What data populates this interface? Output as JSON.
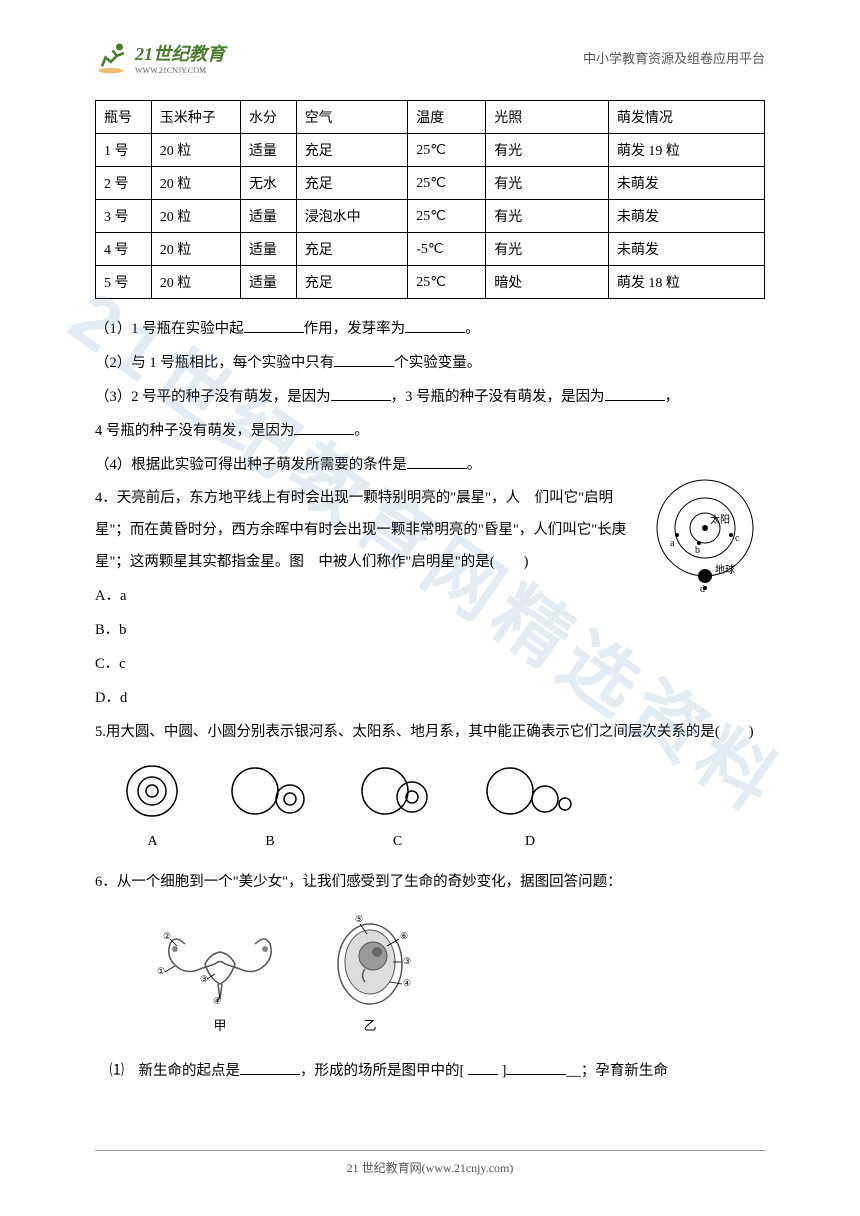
{
  "header": {
    "logo_main": "21世纪教育",
    "logo_url": "WWW.21CNJY.COM",
    "platform_text": "中小学教育资源及组卷应用平台"
  },
  "watermark": "21世纪教育网精选资料",
  "table": {
    "columns": [
      "瓶号",
      "玉米种子",
      "水分",
      "空气",
      "温度",
      "光照",
      "萌发情况"
    ],
    "col_widths": [
      "50px",
      "80px",
      "50px",
      "100px",
      "70px",
      "110px",
      "140px"
    ],
    "rows": [
      [
        "1 号",
        "20 粒",
        "适量",
        "充足",
        "25℃",
        "有光",
        "萌发 19 粒"
      ],
      [
        "2 号",
        "20 粒",
        "无水",
        "充足",
        "25℃",
        "有光",
        "未萌发"
      ],
      [
        "3 号",
        "20 粒",
        "适量",
        "浸泡水中",
        "25℃",
        "有光",
        "未萌发"
      ],
      [
        "4 号",
        "20 粒",
        "适量",
        "充足",
        "-5℃",
        "有光",
        "未萌发"
      ],
      [
        "5 号",
        "20 粒",
        "适量",
        "充足",
        "25℃",
        "暗处",
        "萌发 18 粒"
      ]
    ],
    "border_color": "#000000",
    "font_size": 14
  },
  "questions": {
    "q3_1": "（1）1 号瓶在实验中起________作用，发芽率为________。",
    "q3_2": "（2）与 1 号瓶相比，每个实验中只有________个实验变量。",
    "q3_3a": "（3）2 号平的种子没有萌发，是因为________，3 号瓶的种子没有萌发，是因为________，",
    "q3_3b": "4 号瓶的种子没有萌发，是因为________。",
    "q3_4": "（4）根据此实验可得出种子萌发所需要的条件是________。",
    "q4_text": "4．天亮前后，东方地平线上有时会出现一颗特别明亮的\"晨星\"，人　们叫它\"启明星\"；而在黄昏时分，西方余晖中有时会出现一颗非常明亮的\"昏星\"，人们叫它\"长庚星\"；这两颗星其实都指金星。图　中被人们称作\"启明星\"的是(　　)",
    "q4_options": [
      "A．a",
      "B．b",
      "C．c",
      "D．d"
    ],
    "q5_text": "5.用大圆、中圆、小圆分别表示银河系、太阳系、地月系，其中能正确表示它们之间层次关系的是(　　)",
    "q5_labels": [
      "A",
      "B",
      "C",
      "D"
    ],
    "q6_text": "6．从一个细胞到一个\"美少女\"，让我们感受到了生命的奇妙变化，据图回答问题：",
    "q6_labels": [
      "甲",
      "乙"
    ],
    "q6_1": "⑴　新生命的起点是______，形成的场所是图甲中的[ ___ ]__________；孕育新生命"
  },
  "q4_diagram": {
    "sun_label": "太阳",
    "earth_label": "地球",
    "points": [
      "a",
      "b",
      "c",
      "d"
    ],
    "stroke": "#000000"
  },
  "footer": {
    "text": "21 世纪教育网(www.21cnjy.com)"
  },
  "colors": {
    "background": "#ffffff",
    "text": "#000000",
    "logo_green": "#4a7c2e",
    "logo_orange": "#e8a030",
    "watermark": "rgba(100,150,200,0.18)"
  }
}
